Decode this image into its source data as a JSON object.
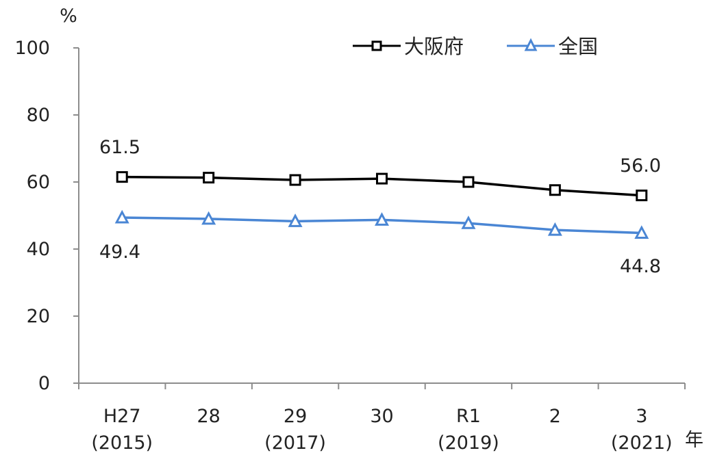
{
  "chart_data": {
    "type": "line",
    "y_unit": "%",
    "x_unit": "年",
    "categories": [
      {
        "line1": "H27",
        "line2": "(2015)"
      },
      {
        "line1": "28",
        "line2": ""
      },
      {
        "line1": "29",
        "line2": "(2017)"
      },
      {
        "line1": "30",
        "line2": ""
      },
      {
        "line1": "R1",
        "line2": "(2019)"
      },
      {
        "line1": "2",
        "line2": ""
      },
      {
        "line1": "3",
        "line2": "(2021)"
      }
    ],
    "y_ticks": [
      "0",
      "20",
      "40",
      "60",
      "80",
      "100"
    ],
    "ylim": [
      0,
      100
    ],
    "grid": false,
    "legend_position": "top-right",
    "series": [
      {
        "name": "大阪府",
        "values": [
          61.5,
          61.3,
          60.6,
          61.0,
          60.0,
          57.6,
          56.0
        ],
        "color": "#000000",
        "marker": "square"
      },
      {
        "name": "全国",
        "values": [
          49.4,
          49.0,
          48.3,
          48.7,
          47.7,
          45.7,
          44.8
        ],
        "color": "#4a86d4",
        "marker": "triangle"
      }
    ],
    "data_labels": [
      "61.5",
      "56.0",
      "49.4",
      "44.8"
    ]
  }
}
